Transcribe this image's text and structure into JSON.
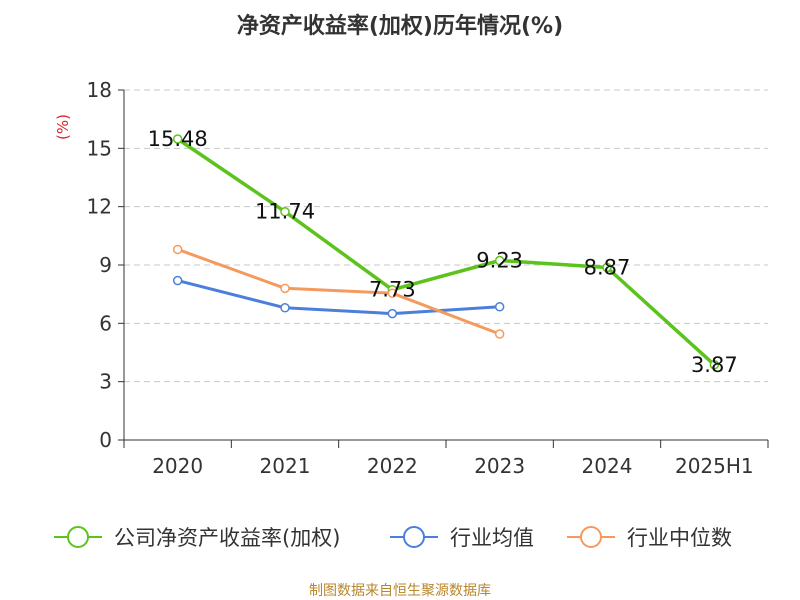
{
  "chart_data": {
    "type": "line",
    "title": "净资产收益率(加权)历年情况(%)",
    "ylabel": "(%)",
    "xlabel": "",
    "ylim": [
      0,
      18
    ],
    "yticks": [
      0,
      3,
      6,
      9,
      12,
      15,
      18
    ],
    "categories": [
      "2020",
      "2021",
      "2022",
      "2023",
      "2024",
      "2025H1"
    ],
    "grid": true,
    "legend_position": "bottom",
    "series": [
      {
        "name": "公司净资产收益率(加权)",
        "color": "#5cc31c",
        "values": [
          15.48,
          11.74,
          7.73,
          9.23,
          8.87,
          3.87
        ],
        "labels": [
          "15.48",
          "11.74",
          "7.73",
          "9.23",
          "8.87",
          "3.87"
        ],
        "bold": true
      },
      {
        "name": "行业均值",
        "color": "#4a7fdb",
        "values": [
          8.2,
          6.8,
          6.5,
          6.85,
          null,
          null
        ]
      },
      {
        "name": "行业中位数",
        "color": "#f59a5e",
        "values": [
          9.8,
          7.8,
          7.55,
          5.45,
          null,
          null
        ]
      }
    ],
    "source": "制图数据来自恒生聚源数据库"
  }
}
